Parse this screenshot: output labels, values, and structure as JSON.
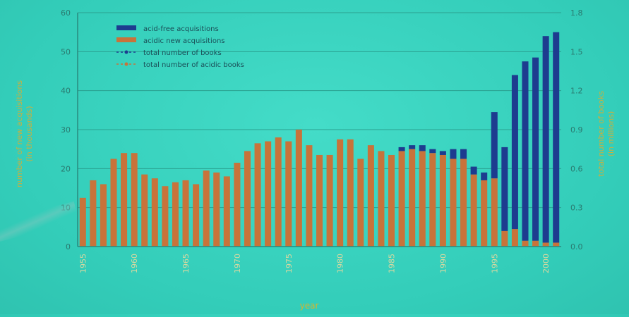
{
  "chart_data": {
    "type": "bar",
    "stacked": true,
    "xlabel": "year",
    "ylabel": "number of new acquisitions\n(in thousands)",
    "y2label": "total number of books\n(in millions)",
    "ylim": [
      0,
      60
    ],
    "y2lim": [
      0,
      1.8
    ],
    "yticks": [
      "0",
      "10",
      "20",
      "30",
      "40",
      "50",
      "60"
    ],
    "y2ticks": [
      "0.0",
      "0.3",
      "0.6",
      "0.9",
      "1.2",
      "1.5",
      "1.8"
    ],
    "xticks": [
      {
        "year": 1955,
        "label": "1955"
      },
      {
        "year": 1960,
        "label": "1960"
      },
      {
        "year": 1965,
        "label": "1965"
      },
      {
        "year": 1970,
        "label": "1970"
      },
      {
        "year": 1975,
        "label": "1975"
      },
      {
        "year": 1980,
        "label": "1980"
      },
      {
        "year": 1985,
        "label": "1985"
      },
      {
        "year": 1990,
        "label": "1990"
      },
      {
        "year": 1995,
        "label": "1995"
      },
      {
        "year": 2000,
        "label": "2000"
      }
    ],
    "grid": true,
    "legend_position": "top-left",
    "legend": [
      {
        "label": "acid-free acquisitions",
        "marker": "bar",
        "color": "#1d3c8f"
      },
      {
        "label": "acidic new acquisitions",
        "marker": "bar",
        "color": "#c8733a"
      },
      {
        "label": "total number of books",
        "marker": "line-point",
        "color": "#1d3c8f"
      },
      {
        "label": "total number of acidic books",
        "marker": "line-point",
        "color": "#c8733a"
      }
    ],
    "colors": {
      "acid_free": "#1d3c8f",
      "acidic": "#c8733a"
    },
    "years": [
      1955,
      1956,
      1957,
      1958,
      1959,
      1960,
      1961,
      1962,
      1963,
      1964,
      1965,
      1966,
      1967,
      1968,
      1969,
      1970,
      1971,
      1972,
      1973,
      1974,
      1975,
      1976,
      1977,
      1978,
      1979,
      1980,
      1981,
      1982,
      1983,
      1984,
      1985,
      1986,
      1987,
      1988,
      1989,
      1990,
      1991,
      1992,
      1993,
      1994,
      1995,
      1996,
      1997,
      1998,
      1999,
      2000,
      2001
    ],
    "series": [
      {
        "name": "acidic new acquisitions",
        "values": [
          12.5,
          17,
          16,
          22.5,
          24,
          24,
          18.5,
          17.5,
          15.5,
          16.5,
          17,
          16,
          19.5,
          19,
          18,
          21.5,
          24.5,
          26.5,
          27,
          28,
          27,
          30,
          26,
          23.5,
          23.5,
          27.5,
          27.5,
          22.5,
          26,
          24.5,
          23.5,
          24.5,
          25,
          24.5,
          24,
          23.5,
          22.5,
          22.5,
          18.5,
          17,
          17.5,
          4,
          4.5,
          1.5,
          1.5,
          1,
          1
        ]
      },
      {
        "name": "acid-free acquisitions",
        "values": [
          0,
          0,
          0,
          0,
          0,
          0,
          0,
          0,
          0,
          0,
          0,
          0,
          0,
          0,
          0,
          0,
          0,
          0,
          0,
          0,
          0,
          0,
          0,
          0,
          0,
          0,
          0,
          0,
          0,
          0,
          0,
          1,
          1,
          1.5,
          1,
          1,
          2.5,
          2.5,
          2,
          2,
          17,
          21.5,
          39.5,
          46,
          47,
          53,
          54
        ]
      }
    ]
  }
}
